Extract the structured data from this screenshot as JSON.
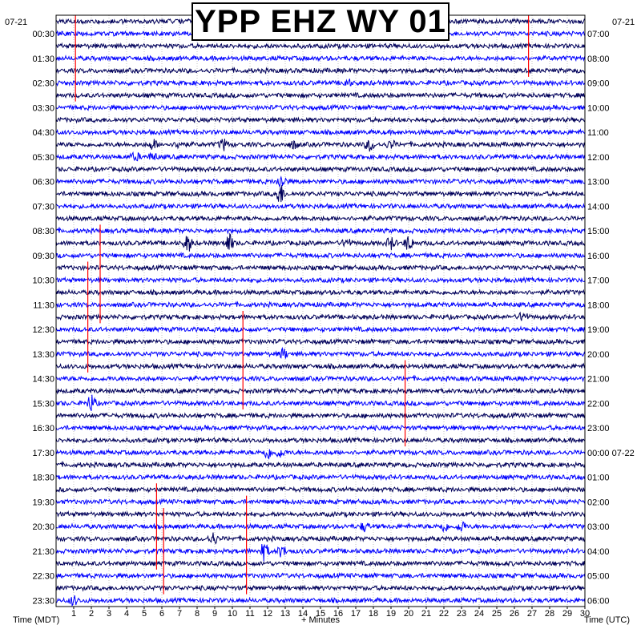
{
  "title": "YPP EHZ WY 01",
  "left_date": "07-21",
  "right_date": "07-21",
  "left_axis_label": "Time (MDT)",
  "right_axis_label": "Time (UTC)",
  "x_axis_label": "+ Minutes",
  "colors": {
    "trace_dark": "#00005a",
    "trace_bright": "#0000ff",
    "pick_marker": "#ff0000",
    "grid": "#9a9a9a",
    "frame": "#000000",
    "background": "#ffffff"
  },
  "chart_data": {
    "type": "heatmap",
    "subtype": "helicorder",
    "title": "YPP EHZ WY 01",
    "xlabel": "+ Minutes",
    "ylabel_left": "Time (MDT)",
    "ylabel_right": "Time (UTC)",
    "xlim": [
      0,
      30
    ],
    "x_ticks": [
      "1",
      "2",
      "3",
      "4",
      "5",
      "6",
      "7",
      "8",
      "9",
      "10",
      "11",
      "12",
      "13",
      "14",
      "15",
      "16",
      "17",
      "18",
      "19",
      "20",
      "21",
      "22",
      "23",
      "24",
      "25",
      "26",
      "27",
      "28",
      "29",
      "30"
    ],
    "line_duration_minutes": 30,
    "line_count": 48,
    "left_tick_labels": [
      "00:30",
      "01:30",
      "02:30",
      "03:30",
      "04:30",
      "05:30",
      "06:30",
      "07:30",
      "08:30",
      "09:30",
      "10:30",
      "11:30",
      "12:30",
      "13:30",
      "14:30",
      "15:30",
      "16:30",
      "17:30",
      "18:30",
      "19:30",
      "20:30",
      "21:30",
      "22:30",
      "23:30"
    ],
    "right_tick_labels": [
      "07:00",
      "08:00",
      "09:00",
      "10:00",
      "11:00",
      "12:00",
      "13:00",
      "14:00",
      "15:00",
      "16:00",
      "17:00",
      "18:00",
      "19:00",
      "20:00",
      "21:00",
      "22:00",
      "23:00",
      "00:00 07-22",
      "01:00",
      "02:00",
      "03:00",
      "04:00",
      "05:00",
      "06:00"
    ],
    "trace_color_cycle": [
      "#00005a",
      "#0000ff",
      "#00005a",
      "#0000ff"
    ],
    "grid": true,
    "events": [
      {
        "line": 5,
        "minute": 16.5,
        "amplitude": 1.6
      },
      {
        "line": 10,
        "minute": 5.5,
        "amplitude": 2.0
      },
      {
        "line": 10,
        "minute": 7.0,
        "amplitude": 1.5
      },
      {
        "line": 10,
        "minute": 9.5,
        "amplitude": 2.2
      },
      {
        "line": 10,
        "minute": 13.5,
        "amplitude": 1.5
      },
      {
        "line": 10,
        "minute": 17.8,
        "amplitude": 2.5
      },
      {
        "line": 10,
        "minute": 19.0,
        "amplitude": 1.5
      },
      {
        "line": 11,
        "minute": 4.5,
        "amplitude": 1.5
      },
      {
        "line": 11,
        "minute": 5.5,
        "amplitude": 1.5
      },
      {
        "line": 13,
        "minute": 12.8,
        "amplitude": 3.0
      },
      {
        "line": 14,
        "minute": 12.7,
        "amplitude": 4.5
      },
      {
        "line": 18,
        "minute": 7.5,
        "amplitude": 3.5
      },
      {
        "line": 18,
        "minute": 9.8,
        "amplitude": 4.0
      },
      {
        "line": 18,
        "minute": 19.0,
        "amplitude": 2.5
      },
      {
        "line": 18,
        "minute": 20.0,
        "amplitude": 3.0
      },
      {
        "line": 18,
        "minute": 16.5,
        "amplitude": 1.8
      },
      {
        "line": 24,
        "minute": 26.5,
        "amplitude": 2.0
      },
      {
        "line": 27,
        "minute": 12.9,
        "amplitude": 2.0
      },
      {
        "line": 31,
        "minute": 2.0,
        "amplitude": 3.5
      },
      {
        "line": 35,
        "minute": 12.0,
        "amplitude": 2.5
      },
      {
        "line": 35,
        "minute": 12.7,
        "amplitude": 1.8
      },
      {
        "line": 41,
        "minute": 17.5,
        "amplitude": 1.7
      },
      {
        "line": 41,
        "minute": 22.0,
        "amplitude": 2.0
      },
      {
        "line": 41,
        "minute": 23.0,
        "amplitude": 2.2
      },
      {
        "line": 42,
        "minute": 8.9,
        "amplitude": 2.5
      },
      {
        "line": 43,
        "minute": 11.8,
        "amplitude": 3.5
      },
      {
        "line": 43,
        "minute": 12.8,
        "amplitude": 2.2
      },
      {
        "line": 47,
        "minute": 1.0,
        "amplitude": 1.8
      }
    ],
    "pick_markers": [
      {
        "minute": 1.1,
        "start_line": 0,
        "end_line": 6
      },
      {
        "minute": 26.8,
        "start_line": 0,
        "end_line": 4
      },
      {
        "minute": 2.5,
        "start_line": 17,
        "end_line": 24
      },
      {
        "minute": 1.8,
        "start_line": 20,
        "end_line": 28
      },
      {
        "minute": 10.6,
        "start_line": 24,
        "end_line": 31
      },
      {
        "minute": 19.8,
        "start_line": 28,
        "end_line": 34
      },
      {
        "minute": 5.7,
        "start_line": 38,
        "end_line": 44
      },
      {
        "minute": 6.1,
        "start_line": 40,
        "end_line": 46
      },
      {
        "minute": 10.8,
        "start_line": 39,
        "end_line": 46
      }
    ]
  }
}
